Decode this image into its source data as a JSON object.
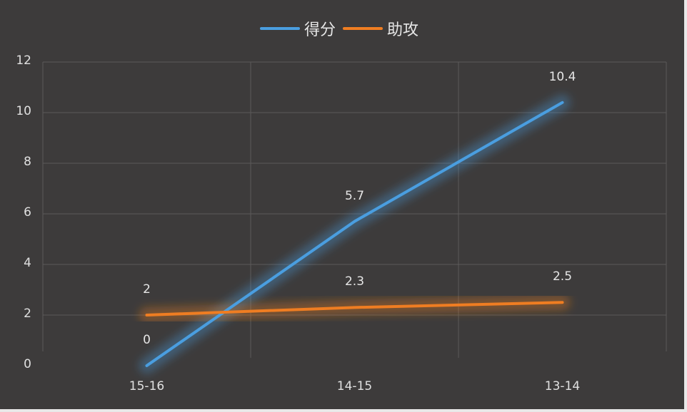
{
  "chart_data": {
    "type": "line",
    "title": "",
    "xlabel": "",
    "ylabel": "",
    "categories": [
      "15-16",
      "14-15",
      "13-14"
    ],
    "series": [
      {
        "name": "得分",
        "values": [
          0,
          5.7,
          10.4
        ],
        "color": "#4a9ee0",
        "labels": [
          "0",
          "5.7",
          "10.4"
        ]
      },
      {
        "name": "助攻",
        "values": [
          2,
          2.3,
          2.5
        ],
        "color": "#ef7d22",
        "labels": [
          "2",
          "2.3",
          "2.5"
        ]
      }
    ],
    "ylim": [
      0,
      12
    ],
    "yticks": [
      "0",
      "2",
      "4",
      "6",
      "8",
      "10",
      "12"
    ],
    "grid": true,
    "legend_position": "top",
    "background": "#3d3b3b"
  }
}
